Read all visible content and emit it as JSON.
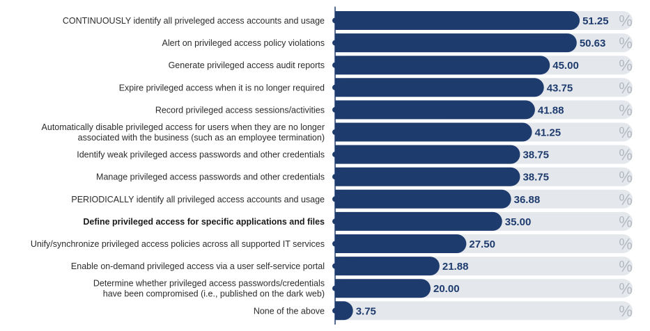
{
  "chart_data": {
    "type": "bar",
    "orientation": "horizontal",
    "categories": [
      "CONTINUOUSLY identify all priveleged access accounts and usage",
      "Alert on privileged access policy violations",
      "Generate privileged access audit reports",
      "Expire privileged access when it is no longer required",
      "Record privileged access sessions/activities",
      [
        "Automatically disable privileged access for users when they are no longer",
        "associated with the business (such as an employee termination)"
      ],
      "Identify weak privileged access passwords and other credentials",
      "Manage privileged access passwords and other credentials",
      "PERIODICALLY identify all privileged access accounts and usage",
      "Define privileged access for specific applications and files",
      "Unify/synchronize privileged access policies across all supported IT services",
      "Enable on-demand privileged access via a user self-service portal",
      [
        "Determine whether privileged access passwords/credentials",
        "have been compromised (i.e., published on the dark web)"
      ],
      "None of the above"
    ],
    "values": [
      51.25,
      50.63,
      45.0,
      43.75,
      41.88,
      41.25,
      38.75,
      38.75,
      36.88,
      35.0,
      27.5,
      21.88,
      20.0,
      3.75
    ],
    "value_labels": [
      "51.25",
      "50.63",
      "45.00",
      "43.75",
      "41.88",
      "41.25",
      "38.75",
      "38.75",
      "36.88",
      "35.00",
      "27.50",
      "21.88",
      "20.00",
      "3.75"
    ],
    "unit": "%",
    "bold_category_index": 9,
    "xlim": [
      0,
      60
    ],
    "grid": false,
    "legend": "none",
    "colors": {
      "bar": "#1e3b6e",
      "track": "#e4e7ec",
      "axis": "#1e3b6e",
      "value_text": "#1e3b6e",
      "unit_text": "#b4b8c0",
      "label_text": "#2b2b2b"
    }
  }
}
